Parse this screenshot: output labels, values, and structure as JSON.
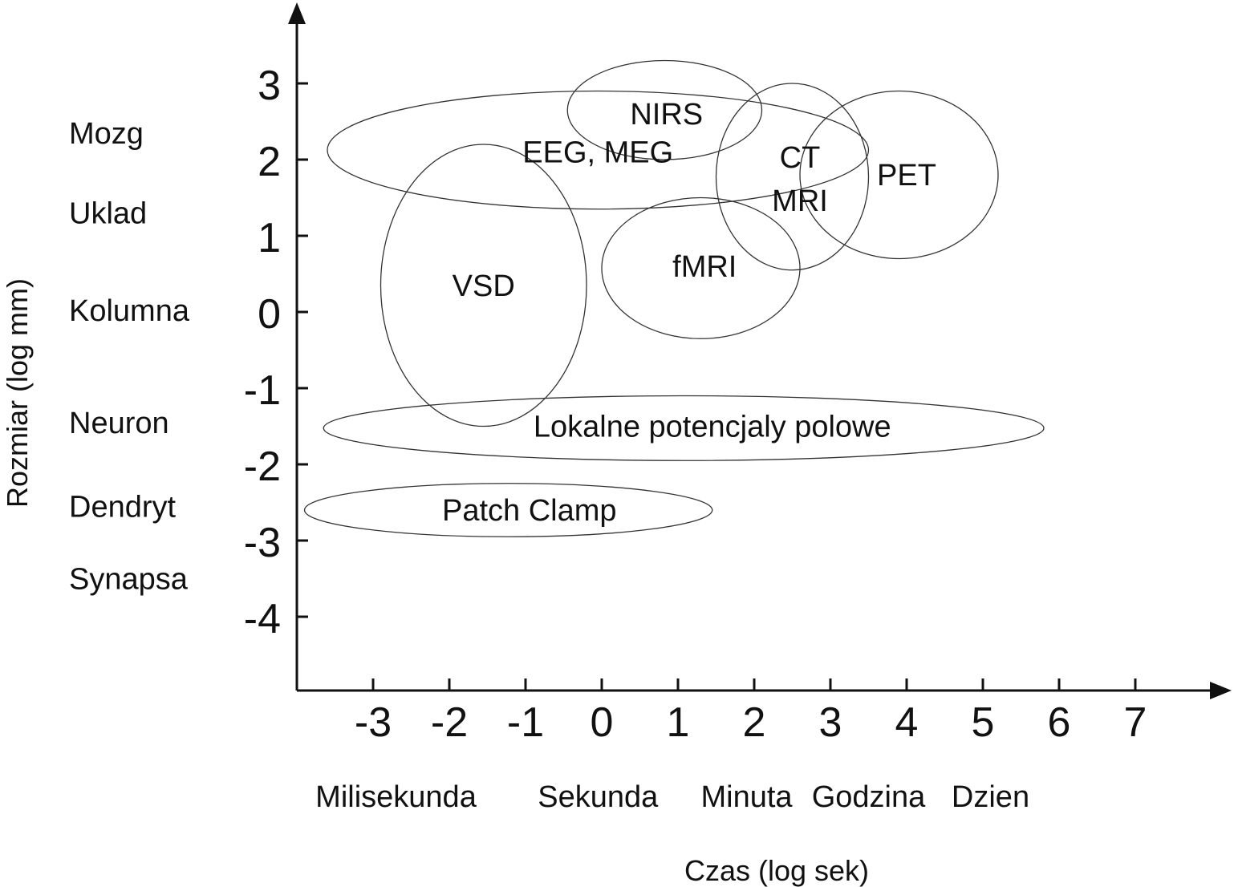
{
  "chart_data": {
    "type": "scatter",
    "title": "",
    "xlabel": "Czas (log sek)",
    "ylabel": "Rozmiar (log mm)",
    "xlim": [
      -4,
      8.2
    ],
    "ylim": [
      -5,
      3.9
    ],
    "x_ticks": [
      -3,
      -2,
      -1,
      0,
      1,
      2,
      3,
      4,
      5,
      6,
      7
    ],
    "y_ticks": [
      3,
      2,
      1,
      0,
      -1,
      -2,
      -3,
      -4
    ],
    "x_tick_labels": [
      "-3",
      "-2",
      "-1",
      "0",
      "1",
      "2",
      "3",
      "4",
      "5",
      "6",
      "7"
    ],
    "y_tick_labels": [
      "3",
      "2",
      "1",
      "0",
      "-1",
      "-2",
      "-3",
      "-4"
    ],
    "time_scale_labels": [
      {
        "text": "Milisekunda",
        "x": -2.7
      },
      {
        "text": "Sekunda",
        "x": -0.05
      },
      {
        "text": "Minuta",
        "x": 1.9
      },
      {
        "text": "Godzina",
        "x": 3.5
      },
      {
        "text": "Dzien",
        "x": 5.1
      }
    ],
    "size_scale_labels": [
      {
        "text": "Mozg",
        "y": 2.35
      },
      {
        "text": "Uklad",
        "y": 1.3
      },
      {
        "text": "Kolumna",
        "y": 0.02
      },
      {
        "text": "Neuron",
        "y": -1.45
      },
      {
        "text": "Dendryt",
        "y": -2.55
      },
      {
        "text": "Synapsa",
        "y": -3.5
      }
    ],
    "methods": [
      {
        "name": "EEG, MEG",
        "x_range": [
          -3.6,
          3.5
        ],
        "y_range": [
          1.35,
          2.9
        ],
        "label_x": -0.05,
        "label_y": 2.1
      },
      {
        "name": "NIRS",
        "x_range": [
          -0.45,
          2.1
        ],
        "y_range": [
          2.0,
          3.3
        ],
        "label_x": 0.85,
        "label_y": 2.6
      },
      {
        "name": "CT\nMRI",
        "x_range": [
          1.5,
          3.5
        ],
        "y_range": [
          0.55,
          3.0
        ],
        "label_x": 2.6,
        "label_y": 1.75
      },
      {
        "name": "PET",
        "x_range": [
          2.6,
          5.2
        ],
        "y_range": [
          0.7,
          2.9
        ],
        "label_x": 4.0,
        "label_y": 1.8
      },
      {
        "name": "VSD",
        "x_range": [
          -2.9,
          -0.2
        ],
        "y_range": [
          -1.5,
          2.2
        ],
        "label_x": -1.55,
        "label_y": 0.35
      },
      {
        "name": "fMRI",
        "x_range": [
          0.0,
          2.6
        ],
        "y_range": [
          -0.35,
          1.5
        ],
        "label_x": 1.35,
        "label_y": 0.6
      },
      {
        "name": "Lokalne potencjaly polowe",
        "x_range": [
          -3.65,
          5.8
        ],
        "y_range": [
          -1.95,
          -1.1
        ],
        "label_x": 1.45,
        "label_y": -1.5
      },
      {
        "name": "Patch Clamp",
        "x_range": [
          -3.9,
          1.45
        ],
        "y_range": [
          -2.95,
          -2.25
        ],
        "label_x": -0.95,
        "label_y": -2.6
      }
    ],
    "grid": false,
    "legend": "none"
  }
}
